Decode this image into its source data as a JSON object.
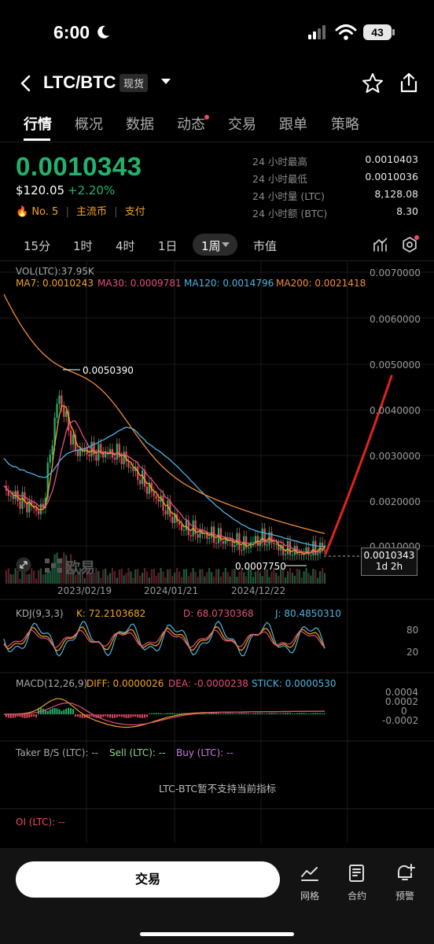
{
  "status_bar": {
    "time": "6:00",
    "battery": "43"
  },
  "header": {
    "pair": "LTC/BTC",
    "tag": "现货"
  },
  "tabs": [
    "行情",
    "概况",
    "数据",
    "动态",
    "交易",
    "跟单",
    "策略"
  ],
  "price": {
    "last": "0.0010343",
    "usd": "$120.05",
    "change": "+2.20%",
    "rank": "No. 5",
    "tag1": "主流币",
    "tag2": "支付"
  },
  "stats": [
    {
      "label": "24 小时最高",
      "value": "0.0010403"
    },
    {
      "label": "24 小时最低",
      "value": "0.0010036"
    },
    {
      "label": "24 小时量 (LTC)",
      "value": "8,128.08"
    },
    {
      "label": "24 小时额 (BTC)",
      "value": "8.30"
    }
  ],
  "intervals": [
    "15分",
    "1时",
    "4时",
    "1日",
    "1周",
    "市值"
  ],
  "main_chart": {
    "vol_label": "VOL(LTC):37.95K",
    "ma7": "MA7: 0.0010243",
    "ma30": "MA30: 0.0009781",
    "ma120": "MA120: 0.0014796",
    "ma200": "MA200: 0.0021418",
    "y_ticks": [
      "0.0070000",
      "0.0060000",
      "0.0050000",
      "0.0040000",
      "0.0030000",
      "0.0020000",
      "0.0010000"
    ],
    "x_ticks": [
      "2023/02/19",
      "2024/01/21",
      "2024/12/22"
    ],
    "high_marker": "0.0050390",
    "low_marker": "0.0007750",
    "current_price": "0.0010343",
    "countdown": "1d 2h",
    "watermark": "欧易"
  },
  "kdj": {
    "name": "KDJ(9,3,3)",
    "k": "K: 72.2103682",
    "d": "D: 68.0730368",
    "j": "J: 80.4850310",
    "ticks": [
      "80",
      "20"
    ]
  },
  "macd": {
    "name": "MACD(12,26,9)",
    "diff": "DIFF: 0.0000026",
    "dea": "DEA: -0.0000238",
    "stick": "STICK: 0.0000530",
    "ticks": [
      "0.0004",
      "0.0002",
      "0",
      "-0.0002"
    ]
  },
  "taker": {
    "label": "Taker B/S (LTC): --",
    "sell": "Sell (LTC): --",
    "buy": "Buy (LTC): --",
    "notice": "LTC-BTC暂不支持当前指标"
  },
  "oi": {
    "label": "OI (LTC): --"
  },
  "bottom": {
    "trade": "交易",
    "grid": "网格",
    "contract": "合约",
    "alert": "预警"
  },
  "colors": {
    "green": "#23b26d",
    "red": "#e84a5f",
    "ma7": "#f0a321",
    "ma30": "#e0507a",
    "ma120": "#4fb3e0",
    "ma200": "#f08c3c",
    "annotation": "#e0231d"
  }
}
